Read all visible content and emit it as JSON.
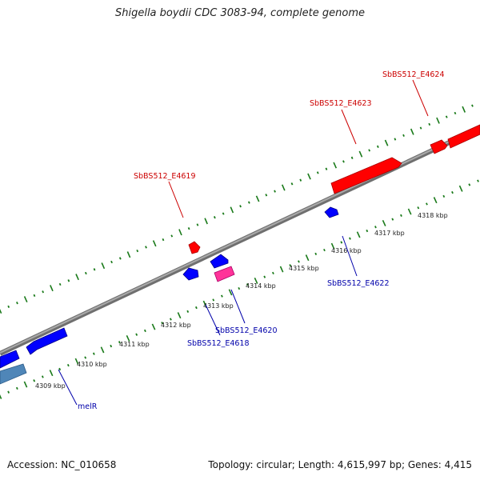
{
  "title": "Shigella boydii CDC 3083-94, complete genome",
  "footer": {
    "accession": "Accession: NC_010658",
    "summary": "Topology: circular; Length: 4,615,997 bp; Genes: 4,415"
  },
  "colors": {
    "backbone": "#8a8a8a",
    "tick": "#1a7a1a",
    "forward_gene": "#ff0000",
    "reverse_gene": "#0000ff",
    "pink_gene": "#ff3399",
    "steel_gene": "#4f86b8",
    "label_red": "#cc0000",
    "label_blue": "#0000aa"
  },
  "scale_labels": [
    "4309 kbp",
    "4310 kbp",
    "4311 kbp",
    "4312 kbp",
    "4313 kbp",
    "4314 kbp",
    "4315 kbp",
    "4316 kbp",
    "4317 kbp",
    "4318 kbp"
  ],
  "gene_labels": {
    "melR": "melR",
    "e4618": "SbBS512_E4618",
    "e4619": "SbBS512_E4619",
    "e4620": "SbBS512_E4620",
    "e4622": "SbBS512_E4622",
    "e4623": "SbBS512_E4623",
    "e4624": "SbBS512_E4624"
  }
}
